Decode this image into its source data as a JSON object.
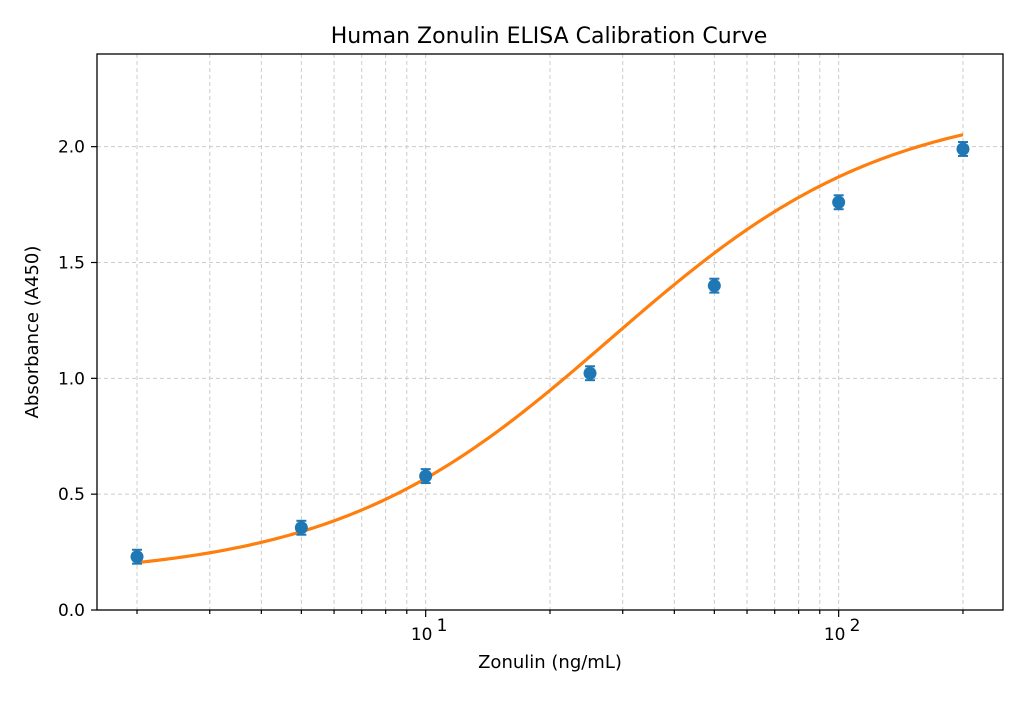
{
  "chart_data": {
    "type": "scatter",
    "title": "Human Zonulin ELISA Calibration Curve",
    "xlabel": "Zonulin (ng/mL)",
    "ylabel": "Absorbance (A450)",
    "x_scale": "log",
    "xlim": [
      1.6,
      250
    ],
    "ylim": [
      0,
      2.4
    ],
    "x_major_ticks": [
      10,
      100
    ],
    "x_tick_labels": [
      {
        "base": "10",
        "exp": "1"
      },
      {
        "base": "10",
        "exp": "2"
      }
    ],
    "x_minor_ticks": [
      2,
      3,
      4,
      5,
      6,
      7,
      8,
      9,
      20,
      30,
      40,
      50,
      60,
      70,
      80,
      90,
      200
    ],
    "y_ticks": [
      0.0,
      0.5,
      1.0,
      1.5,
      2.0
    ],
    "y_tick_labels": [
      "0.0",
      "0.5",
      "1.0",
      "1.5",
      "2.0"
    ],
    "grid": true,
    "series": [
      {
        "kind": "points_with_error",
        "color": "#1f77b4",
        "x": [
          2,
          5,
          10,
          25,
          50,
          100,
          200
        ],
        "y": [
          0.23,
          0.355,
          0.578,
          1.022,
          1.4,
          1.76,
          1.99
        ],
        "yerr": [
          0.03,
          0.03,
          0.03,
          0.03,
          0.03,
          0.03,
          0.03
        ]
      },
      {
        "kind": "fit_curve",
        "color": "#ff7f0e",
        "model": "4PL",
        "params": {
          "A": 0.14,
          "B": 1.3,
          "C": 28,
          "D": 2.2
        }
      }
    ]
  }
}
